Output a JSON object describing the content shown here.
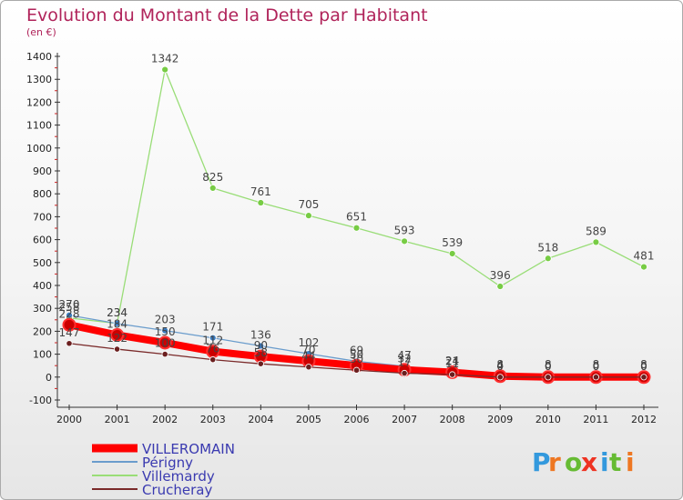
{
  "page": {
    "title": "Evolution du Montant de la Dette par Habitant",
    "subtitle": "(en €)",
    "logo": "Proxiti"
  },
  "chart_data": {
    "type": "line",
    "title": "Evolution du Montant de la Dette par Habitant",
    "subtitle": "(en €)",
    "xlabel": "",
    "ylabel": "",
    "x": [
      "2000",
      "2001",
      "2002",
      "2003",
      "2004",
      "2005",
      "2006",
      "2007",
      "2008",
      "2009",
      "2010",
      "2011",
      "2012"
    ],
    "ylim": [
      -100,
      1400
    ],
    "yticks": [
      -100,
      0,
      100,
      200,
      300,
      400,
      500,
      600,
      700,
      800,
      900,
      1000,
      1100,
      1200,
      1300,
      1400
    ],
    "grid": false,
    "legend_position": "bottom-left",
    "series": [
      {
        "name": "VILLEROMAIN",
        "color": "#ff0000",
        "marker_color": "#cc0000",
        "values": [
          228,
          184,
          150,
          112,
          90,
          70,
          50,
          32,
          21,
          4,
          0,
          0,
          0
        ]
      },
      {
        "name": "Périgny",
        "color": "#6a9ccc",
        "marker_color": "#3a7bbf",
        "values": [
          270,
          234,
          203,
          171,
          136,
          102,
          69,
          47,
          24,
          8,
          8,
          8,
          8
        ]
      },
      {
        "name": "Villemardy",
        "color": "#99dd77",
        "marker_color": "#77cc44",
        "values": [
          258,
          234,
          1342,
          825,
          761,
          705,
          651,
          593,
          539,
          396,
          518,
          589,
          481
        ]
      },
      {
        "name": "Crucheray",
        "color": "#7a2a2a",
        "marker_color": "#6b1f1f",
        "values": [
          147,
          122,
          100,
          76,
          58,
          44,
          30,
          17,
          11,
          0,
          0,
          0,
          0
        ]
      }
    ],
    "data_labels": [
      {
        "series": "Villemardy",
        "labels": [
          "258",
          "234",
          "1342",
          "825",
          "761",
          "705",
          "651",
          "593",
          "539",
          "396",
          "518",
          "589",
          "481"
        ]
      },
      {
        "series": "Périgny",
        "labels": [
          "270",
          "234",
          "203",
          "171",
          "136",
          "102",
          "69",
          "47",
          "24",
          "8",
          "8",
          "8",
          "8"
        ]
      },
      {
        "series": "VILLEROMAIN",
        "labels": [
          "228",
          "184",
          "150",
          "112",
          "90",
          "70",
          "50",
          "32",
          "21",
          "4",
          "0",
          "0",
          "0"
        ]
      },
      {
        "series": "Crucheray",
        "labels": [
          "147",
          "122",
          "100",
          "76",
          "58",
          "44",
          "30",
          "17",
          "11",
          "0",
          "0",
          "0",
          "0"
        ]
      }
    ],
    "colors": {
      "title": "#b0235a",
      "axis": "#333333",
      "legend_text": "#3a3ab0"
    }
  }
}
